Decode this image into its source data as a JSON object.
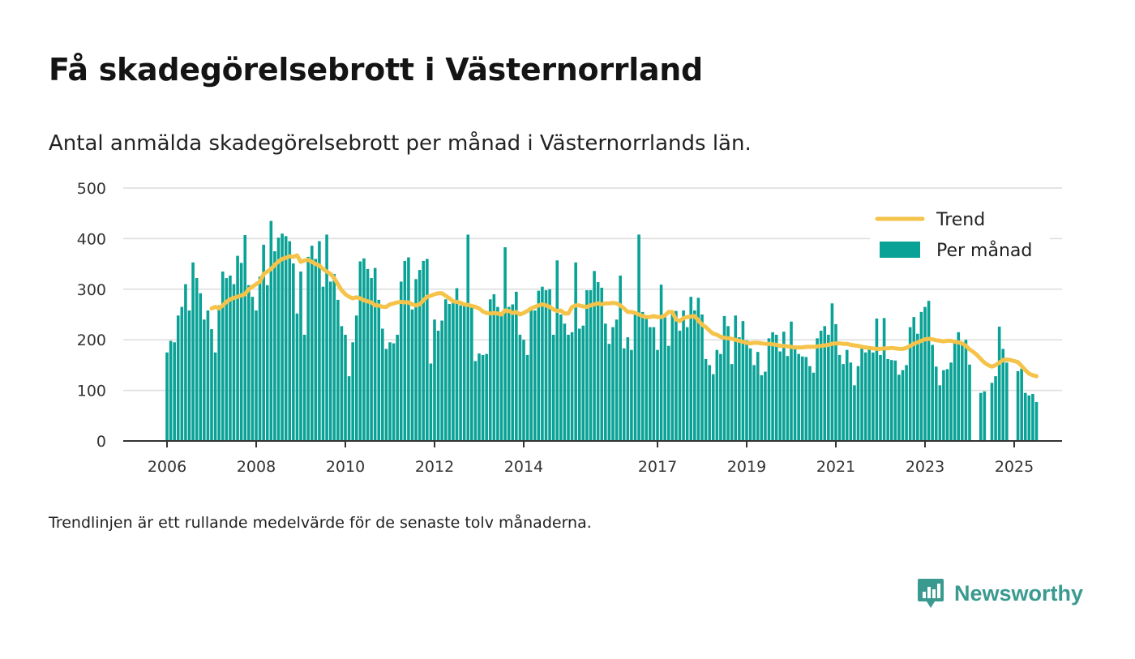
{
  "title": "Få skadegörelsebrott i Västernorrland",
  "subtitle": "Antal anmälda skadegörelsebrott per månad i Västernorrlands län.",
  "footnote": "Trendlinjen är ett rullande medelvärde för de senaste tolv månaderna.",
  "brand": {
    "name": "Newsworthy",
    "color": "#3a9a8f",
    "icon": "newsworthy-logo-icon"
  },
  "colors": {
    "bars": "#0aa296",
    "trend": "#f5c34a",
    "grid": "#dcdcdc",
    "axis": "#333333"
  },
  "chart_data": {
    "type": "bar",
    "title": "",
    "xlabel": "",
    "ylabel": "",
    "ylim": [
      0,
      500
    ],
    "yticks": [
      0,
      100,
      200,
      300,
      400,
      500
    ],
    "xticks": [
      "2006",
      "2008",
      "2010",
      "2012",
      "2014",
      "2017",
      "2019",
      "2021",
      "2023",
      "2025"
    ],
    "grid": true,
    "legend_position": "top-right",
    "start": "2006-01",
    "series": [
      {
        "name": "Per månad",
        "type": "bar",
        "values": [
          175,
          198,
          195,
          248,
          265,
          310,
          258,
          353,
          322,
          292,
          240,
          258,
          221,
          175,
          268,
          335,
          322,
          327,
          310,
          366,
          352,
          407,
          308,
          285,
          258,
          325,
          388,
          308,
          435,
          375,
          402,
          410,
          405,
          395,
          351,
          252,
          335,
          210,
          364,
          386,
          360,
          395,
          305,
          408,
          315,
          330,
          279,
          227,
          210,
          128,
          195,
          248,
          355,
          361,
          340,
          322,
          342,
          279,
          222,
          182,
          195,
          193,
          210,
          315,
          356,
          363,
          260,
          320,
          338,
          356,
          360,
          153,
          240,
          218,
          238,
          280,
          271,
          275,
          302,
          268,
          268,
          408,
          270,
          158,
          173,
          170,
          172,
          280,
          290,
          265,
          247,
          383,
          265,
          270,
          295,
          210,
          200,
          170,
          260,
          258,
          297,
          305,
          298,
          300,
          210,
          357,
          250,
          232,
          210,
          215,
          353,
          222,
          228,
          298,
          298,
          336,
          314,
          303,
          232,
          192,
          225,
          240,
          327,
          183,
          205,
          180,
          250,
          408,
          255,
          245,
          225,
          225,
          180,
          309,
          245,
          188,
          258,
          257,
          218,
          258,
          225,
          285,
          258,
          283,
          250,
          162,
          150,
          132,
          180,
          172,
          247,
          227,
          152,
          248,
          205,
          237,
          199,
          183,
          150,
          176,
          130,
          137,
          203,
          215,
          210,
          177,
          216,
          168,
          236,
          182,
          172,
          167,
          166,
          148,
          135,
          203,
          218,
          227,
          210,
          272,
          231,
          170,
          152,
          180,
          155,
          110,
          148,
          188,
          175,
          186,
          175,
          242,
          170,
          243,
          162,
          160,
          159,
          131,
          140,
          150,
          225,
          245,
          212,
          255,
          265,
          277,
          190,
          147,
          110,
          140,
          142,
          155,
          196,
          215,
          193,
          200,
          151,
          0,
          0,
          95,
          98,
          0,
          115,
          128,
          226,
          182,
          155,
          0,
          0,
          138,
          143,
          95,
          90,
          93,
          77
        ]
      },
      {
        "name": "Trend",
        "type": "line",
        "values": [
          null,
          null,
          null,
          null,
          null,
          null,
          null,
          null,
          null,
          null,
          null,
          null,
          262,
          265,
          262,
          268,
          275,
          280,
          283,
          285,
          288,
          290,
          300,
          305,
          310,
          315,
          330,
          335,
          340,
          348,
          355,
          360,
          362,
          365,
          364,
          367,
          354,
          357,
          358,
          354,
          350,
          347,
          340,
          335,
          330,
          322,
          310,
          298,
          290,
          285,
          282,
          284,
          282,
          278,
          276,
          274,
          268,
          268,
          265,
          265,
          270,
          272,
          274,
          275,
          274,
          274,
          270,
          268,
          270,
          278,
          285,
          287,
          290,
          292,
          292,
          287,
          282,
          276,
          275,
          273,
          270,
          269,
          267,
          265,
          262,
          256,
          253,
          252,
          253,
          252,
          250,
          258,
          257,
          253,
          255,
          250,
          253,
          257,
          262,
          265,
          268,
          270,
          268,
          265,
          260,
          257,
          258,
          252,
          252,
          265,
          268,
          268,
          266,
          265,
          268,
          270,
          272,
          270,
          272,
          272,
          273,
          272,
          268,
          262,
          255,
          255,
          253,
          250,
          247,
          245,
          245,
          247,
          245,
          245,
          248,
          255,
          255,
          240,
          237,
          243,
          245,
          246,
          247,
          238,
          230,
          225,
          218,
          212,
          210,
          206,
          204,
          203,
          202,
          200,
          198,
          196,
          194,
          193,
          194,
          194,
          193,
          192,
          192,
          191,
          190,
          188,
          188,
          187,
          186,
          185,
          185,
          185,
          186,
          186,
          186,
          187,
          188,
          189,
          190,
          192,
          193,
          193,
          192,
          192,
          190,
          189,
          188,
          186,
          185,
          184,
          183,
          182,
          182,
          183,
          183,
          184,
          183,
          182,
          182,
          184,
          188,
          192,
          195,
          198,
          201,
          202,
          201,
          199,
          198,
          197,
          198,
          198,
          196,
          195,
          193,
          188,
          181,
          176,
          170,
          162,
          155,
          150,
          147,
          150,
          155,
          160,
          161,
          160,
          158,
          156,
          148,
          140,
          133,
          130,
          128
        ]
      }
    ]
  }
}
